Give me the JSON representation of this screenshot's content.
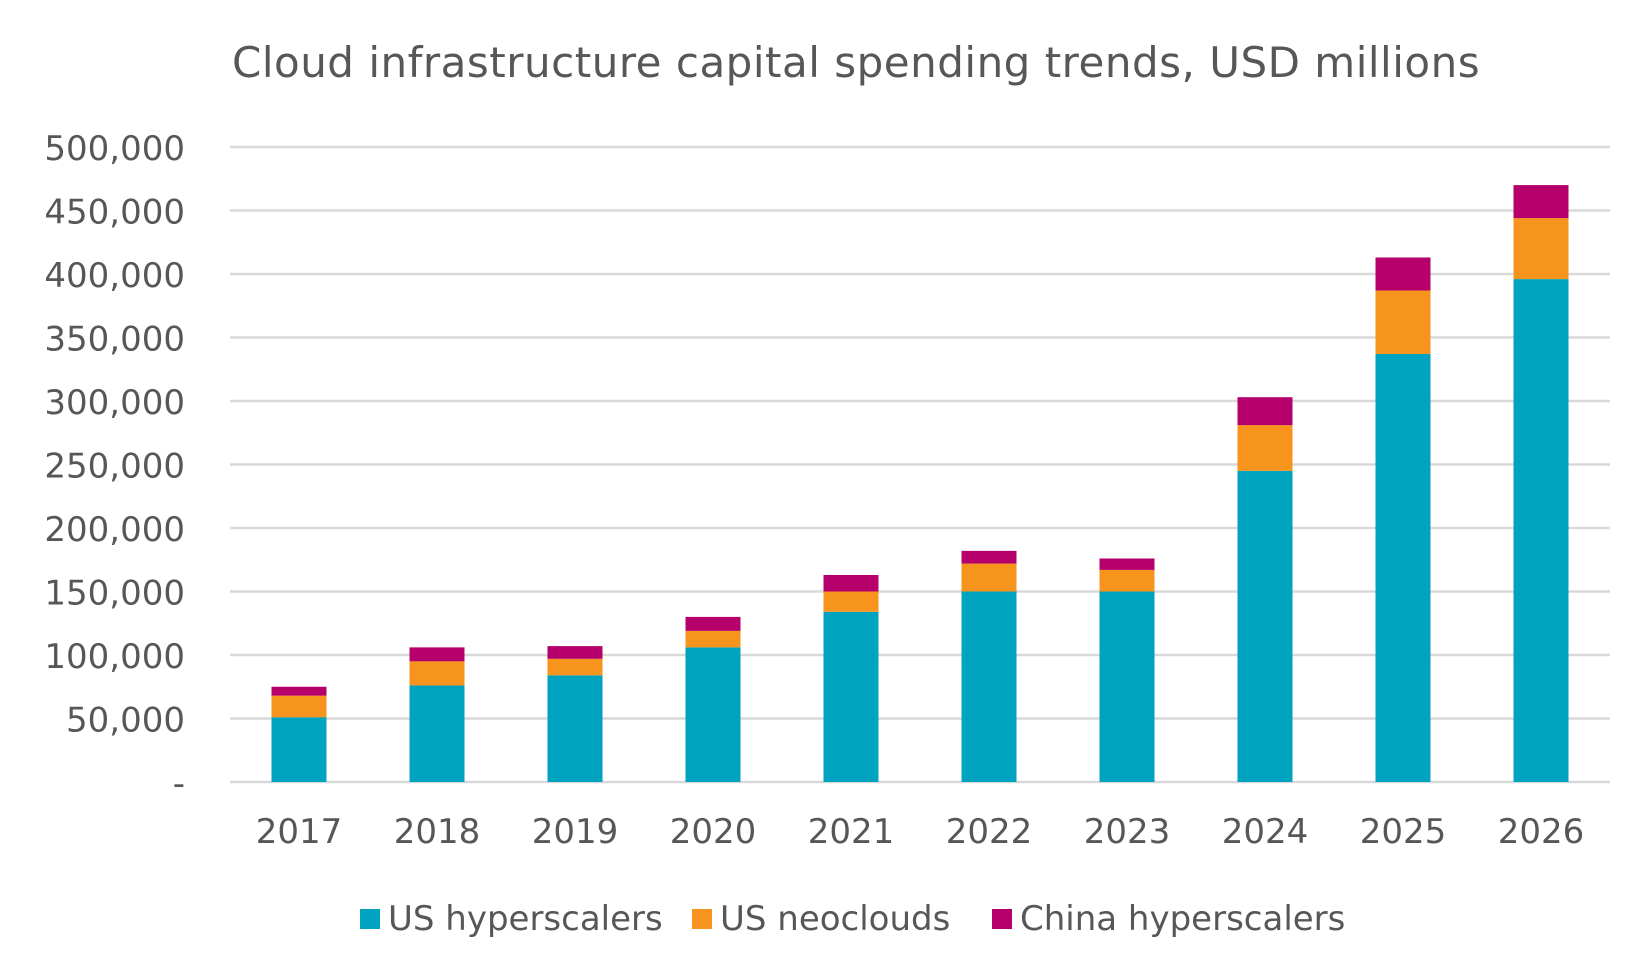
{
  "chart_data": {
    "type": "bar",
    "stacked": true,
    "title": "Cloud infrastructure capital spending trends, USD millions",
    "xlabel": "",
    "ylabel": "",
    "categories": [
      "2017",
      "2018",
      "2019",
      "2020",
      "2021",
      "2022",
      "2023",
      "2024",
      "2025",
      "2026"
    ],
    "series": [
      {
        "name": "US hyperscalers",
        "color": "#00a3bf",
        "values": [
          51000,
          76000,
          84000,
          106000,
          134000,
          150000,
          150000,
          245000,
          337000,
          396000
        ]
      },
      {
        "name": "US neoclouds",
        "color": "#f7941d",
        "values": [
          17000,
          19000,
          13000,
          13000,
          16000,
          22000,
          17000,
          36000,
          50000,
          48000
        ]
      },
      {
        "name": "China hyperscalers",
        "color": "#b5006b",
        "values": [
          7000,
          11000,
          10000,
          11000,
          13000,
          10000,
          9000,
          22000,
          26000,
          26000
        ]
      }
    ],
    "ylim": [
      0,
      500000
    ],
    "ytick_values": [
      0,
      50000,
      100000,
      150000,
      200000,
      250000,
      300000,
      350000,
      400000,
      450000,
      500000
    ],
    "ytick_labels": [
      "-",
      "50,000",
      "100,000",
      "150,000",
      "200,000",
      "250,000",
      "300,000",
      "350,000",
      "400,000",
      "450,000",
      "500,000"
    ],
    "grid": true,
    "gridColor": "#d9d9d9",
    "legend_position": "bottom-center"
  }
}
